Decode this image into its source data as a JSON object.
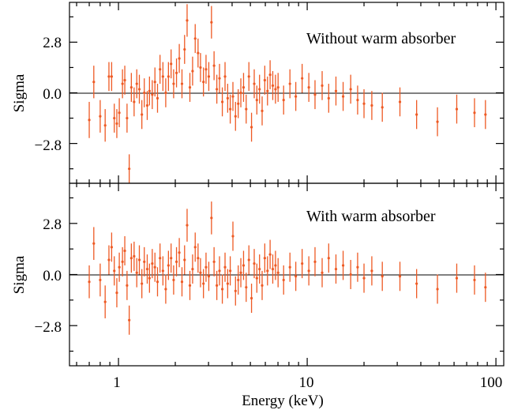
{
  "chart_data": {
    "type": "scatter",
    "x_scale": "log",
    "xlabel": "Energy (keV)",
    "xlim": [
      0.55,
      110
    ],
    "x_tick_labels": [
      "1",
      "10",
      "100"
    ],
    "colors": {
      "points": "#ee5a24",
      "zero_line": "#000000",
      "frame": "#000000"
    },
    "shared_x_axis": true,
    "panels": [
      {
        "annotation": "Without warm absorber",
        "ylabel": "Sigma",
        "ylim": [
          -5.0,
          5.0
        ],
        "y_tick_labels": [
          "2.8",
          "0.0",
          "−2.8"
        ],
        "reference_line_y": 0,
        "points": [
          {
            "x": 0.7,
            "y": -1.5,
            "err": 1.0
          },
          {
            "x": 0.74,
            "y": 0.6,
            "err": 0.9
          },
          {
            "x": 0.8,
            "y": -1.3,
            "err": 0.9
          },
          {
            "x": 0.85,
            "y": -1.8,
            "err": 0.9
          },
          {
            "x": 0.89,
            "y": 0.9,
            "err": 0.8
          },
          {
            "x": 0.92,
            "y": 0.9,
            "err": 0.8
          },
          {
            "x": 0.95,
            "y": -1.4,
            "err": 0.8
          },
          {
            "x": 0.98,
            "y": -1.7,
            "err": 0.8
          },
          {
            "x": 1.01,
            "y": -1.1,
            "err": 0.8
          },
          {
            "x": 1.05,
            "y": 0.5,
            "err": 0.8
          },
          {
            "x": 1.08,
            "y": 0.7,
            "err": 0.8
          },
          {
            "x": 1.11,
            "y": -1.4,
            "err": 0.8
          },
          {
            "x": 1.14,
            "y": -4.2,
            "err": 0.8
          },
          {
            "x": 1.17,
            "y": 0.3,
            "err": 0.8
          },
          {
            "x": 1.21,
            "y": -0.5,
            "err": 0.8
          },
          {
            "x": 1.25,
            "y": 0.5,
            "err": 0.8
          },
          {
            "x": 1.29,
            "y": 0.2,
            "err": 0.8
          },
          {
            "x": 1.33,
            "y": -1.2,
            "err": 0.8
          },
          {
            "x": 1.37,
            "y": 0.0,
            "err": 0.8
          },
          {
            "x": 1.42,
            "y": -0.7,
            "err": 0.8
          },
          {
            "x": 1.46,
            "y": 0.1,
            "err": 0.8
          },
          {
            "x": 1.51,
            "y": -0.1,
            "err": 0.8
          },
          {
            "x": 1.56,
            "y": 0.6,
            "err": 0.8
          },
          {
            "x": 1.61,
            "y": -0.3,
            "err": 0.8
          },
          {
            "x": 1.66,
            "y": 1.3,
            "err": 0.8
          },
          {
            "x": 1.72,
            "y": 0.9,
            "err": 0.8
          },
          {
            "x": 1.78,
            "y": 0.0,
            "err": 0.8
          },
          {
            "x": 1.84,
            "y": 0.9,
            "err": 0.8
          },
          {
            "x": 1.9,
            "y": 1.6,
            "err": 0.8
          },
          {
            "x": 1.96,
            "y": 0.5,
            "err": 0.8
          },
          {
            "x": 2.03,
            "y": 1.1,
            "err": 0.8
          },
          {
            "x": 2.1,
            "y": 1.9,
            "err": 0.8
          },
          {
            "x": 2.17,
            "y": 0.5,
            "err": 0.8
          },
          {
            "x": 2.24,
            "y": 2.4,
            "err": 0.8
          },
          {
            "x": 2.31,
            "y": 4.0,
            "err": 0.9
          },
          {
            "x": 2.39,
            "y": 0.3,
            "err": 0.8
          },
          {
            "x": 2.47,
            "y": 1.2,
            "err": 0.8
          },
          {
            "x": 2.55,
            "y": 3.0,
            "err": 0.8
          },
          {
            "x": 2.64,
            "y": 2.2,
            "err": 0.8
          },
          {
            "x": 2.72,
            "y": 1.4,
            "err": 0.8
          },
          {
            "x": 2.82,
            "y": 0.6,
            "err": 0.8
          },
          {
            "x": 2.91,
            "y": 1.3,
            "err": 0.8
          },
          {
            "x": 3.01,
            "y": 0.9,
            "err": 0.8
          },
          {
            "x": 3.11,
            "y": 3.9,
            "err": 0.9
          },
          {
            "x": 3.21,
            "y": 1.5,
            "err": 0.8
          },
          {
            "x": 3.32,
            "y": 0.2,
            "err": 0.8
          },
          {
            "x": 3.43,
            "y": 0.8,
            "err": 0.8
          },
          {
            "x": 3.55,
            "y": -0.5,
            "err": 0.8
          },
          {
            "x": 3.67,
            "y": 0.9,
            "err": 0.8
          },
          {
            "x": 3.79,
            "y": -0.3,
            "err": 0.8
          },
          {
            "x": 3.91,
            "y": -0.9,
            "err": 0.8
          },
          {
            "x": 4.04,
            "y": -0.2,
            "err": 0.8
          },
          {
            "x": 4.17,
            "y": -1.3,
            "err": 0.8
          },
          {
            "x": 4.31,
            "y": -0.6,
            "err": 0.8
          },
          {
            "x": 4.45,
            "y": 0.0,
            "err": 0.8
          },
          {
            "x": 4.6,
            "y": 0.3,
            "err": 0.8
          },
          {
            "x": 4.75,
            "y": -0.9,
            "err": 0.8
          },
          {
            "x": 4.91,
            "y": 0.9,
            "err": 0.8
          },
          {
            "x": 5.07,
            "y": -1.9,
            "err": 0.8
          },
          {
            "x": 5.24,
            "y": 0.5,
            "err": 0.8
          },
          {
            "x": 5.41,
            "y": -0.4,
            "err": 0.8
          },
          {
            "x": 5.59,
            "y": 0.2,
            "err": 0.8
          },
          {
            "x": 5.77,
            "y": -1.0,
            "err": 0.8
          },
          {
            "x": 5.96,
            "y": 0.7,
            "err": 0.8
          },
          {
            "x": 6.16,
            "y": 0.1,
            "err": 0.8
          },
          {
            "x": 6.36,
            "y": 1.0,
            "err": 0.8
          },
          {
            "x": 6.57,
            "y": 0.4,
            "err": 0.8
          },
          {
            "x": 6.79,
            "y": 0.2,
            "err": 0.8
          },
          {
            "x": 7.01,
            "y": 0.3,
            "err": 0.8
          },
          {
            "x": 7.5,
            "y": -0.4,
            "err": 0.8
          },
          {
            "x": 8.1,
            "y": 0.5,
            "err": 0.8
          },
          {
            "x": 8.7,
            "y": -0.2,
            "err": 0.8
          },
          {
            "x": 9.4,
            "y": 0.8,
            "err": 0.8
          },
          {
            "x": 10.2,
            "y": 0.3,
            "err": 0.8
          },
          {
            "x": 11.0,
            "y": -0.1,
            "err": 0.8
          },
          {
            "x": 12.0,
            "y": 0.4,
            "err": 0.8
          },
          {
            "x": 13.0,
            "y": -0.3,
            "err": 0.8
          },
          {
            "x": 14.2,
            "y": 0.1,
            "err": 0.8
          },
          {
            "x": 15.5,
            "y": -0.2,
            "err": 0.8
          },
          {
            "x": 17.0,
            "y": 0.2,
            "err": 0.8
          },
          {
            "x": 18.5,
            "y": -0.4,
            "err": 0.8
          },
          {
            "x": 20.0,
            "y": -0.6,
            "err": 0.8
          },
          {
            "x": 22.0,
            "y": -0.7,
            "err": 0.8
          },
          {
            "x": 25.0,
            "y": -0.8,
            "err": 0.8
          },
          {
            "x": 31.0,
            "y": -0.5,
            "err": 0.8
          },
          {
            "x": 38.0,
            "y": -1.2,
            "err": 0.8
          },
          {
            "x": 49.0,
            "y": -1.6,
            "err": 0.8
          },
          {
            "x": 62.0,
            "y": -0.9,
            "err": 0.8
          },
          {
            "x": 77.0,
            "y": -1.1,
            "err": 0.8
          },
          {
            "x": 88.0,
            "y": -1.2,
            "err": 0.8
          }
        ]
      },
      {
        "annotation": "With warm absorber",
        "ylabel": "Sigma",
        "ylim": [
          -5.0,
          5.0
        ],
        "y_tick_labels": [
          "2.8",
          "0.0",
          "−2.8"
        ],
        "reference_line_y": 0,
        "points": [
          {
            "x": 0.7,
            "y": -0.4,
            "err": 0.9
          },
          {
            "x": 0.74,
            "y": 1.7,
            "err": 0.9
          },
          {
            "x": 0.8,
            "y": -0.3,
            "err": 0.9
          },
          {
            "x": 0.85,
            "y": -1.5,
            "err": 0.9
          },
          {
            "x": 0.89,
            "y": 0.8,
            "err": 0.8
          },
          {
            "x": 0.92,
            "y": 1.5,
            "err": 0.8
          },
          {
            "x": 0.95,
            "y": 0.2,
            "err": 0.8
          },
          {
            "x": 0.98,
            "y": -1.0,
            "err": 0.8
          },
          {
            "x": 1.01,
            "y": 0.4,
            "err": 0.8
          },
          {
            "x": 1.05,
            "y": 0.7,
            "err": 0.8
          },
          {
            "x": 1.08,
            "y": 1.3,
            "err": 0.8
          },
          {
            "x": 1.11,
            "y": -0.6,
            "err": 0.8
          },
          {
            "x": 1.14,
            "y": -2.5,
            "err": 0.8
          },
          {
            "x": 1.17,
            "y": 0.9,
            "err": 0.8
          },
          {
            "x": 1.21,
            "y": 1.0,
            "err": 0.8
          },
          {
            "x": 1.25,
            "y": 0.1,
            "err": 0.8
          },
          {
            "x": 1.29,
            "y": 0.8,
            "err": 0.8
          },
          {
            "x": 1.33,
            "y": -0.5,
            "err": 0.8
          },
          {
            "x": 1.37,
            "y": 0.7,
            "err": 0.8
          },
          {
            "x": 1.42,
            "y": 0.3,
            "err": 0.8
          },
          {
            "x": 1.46,
            "y": -0.2,
            "err": 0.8
          },
          {
            "x": 1.51,
            "y": 0.6,
            "err": 0.8
          },
          {
            "x": 1.56,
            "y": 0.4,
            "err": 0.8
          },
          {
            "x": 1.61,
            "y": -0.4,
            "err": 0.8
          },
          {
            "x": 1.66,
            "y": 0.9,
            "err": 0.8
          },
          {
            "x": 1.72,
            "y": 0.2,
            "err": 0.8
          },
          {
            "x": 1.78,
            "y": -0.8,
            "err": 0.8
          },
          {
            "x": 1.84,
            "y": 0.5,
            "err": 0.8
          },
          {
            "x": 1.9,
            "y": 0.9,
            "err": 0.8
          },
          {
            "x": 1.96,
            "y": -0.3,
            "err": 0.8
          },
          {
            "x": 2.03,
            "y": 0.7,
            "err": 0.8
          },
          {
            "x": 2.1,
            "y": 1.2,
            "err": 0.8
          },
          {
            "x": 2.17,
            "y": -0.4,
            "err": 0.8
          },
          {
            "x": 2.24,
            "y": 0.8,
            "err": 0.8
          },
          {
            "x": 2.31,
            "y": 2.7,
            "err": 0.9
          },
          {
            "x": 2.39,
            "y": -0.6,
            "err": 0.8
          },
          {
            "x": 2.47,
            "y": 0.3,
            "err": 0.8
          },
          {
            "x": 2.55,
            "y": 1.5,
            "err": 0.8
          },
          {
            "x": 2.64,
            "y": 0.9,
            "err": 0.8
          },
          {
            "x": 2.72,
            "y": 0.1,
            "err": 0.8
          },
          {
            "x": 2.82,
            "y": -0.5,
            "err": 0.8
          },
          {
            "x": 2.91,
            "y": 0.4,
            "err": 0.8
          },
          {
            "x": 3.01,
            "y": -0.1,
            "err": 0.8
          },
          {
            "x": 3.11,
            "y": 3.1,
            "err": 0.9
          },
          {
            "x": 3.21,
            "y": 0.7,
            "err": 0.8
          },
          {
            "x": 3.32,
            "y": -0.6,
            "err": 0.8
          },
          {
            "x": 3.43,
            "y": 0.2,
            "err": 0.8
          },
          {
            "x": 3.55,
            "y": -0.8,
            "err": 0.8
          },
          {
            "x": 3.67,
            "y": 0.4,
            "err": 0.8
          },
          {
            "x": 3.79,
            "y": -0.5,
            "err": 0.8
          },
          {
            "x": 3.91,
            "y": 0.2,
            "err": 0.8
          },
          {
            "x": 4.04,
            "y": 2.1,
            "err": 0.8
          },
          {
            "x": 4.17,
            "y": -0.9,
            "err": 0.8
          },
          {
            "x": 4.31,
            "y": -0.3,
            "err": 0.8
          },
          {
            "x": 4.45,
            "y": 0.1,
            "err": 0.8
          },
          {
            "x": 4.6,
            "y": 0.5,
            "err": 0.8
          },
          {
            "x": 4.75,
            "y": -0.7,
            "err": 0.8
          },
          {
            "x": 4.91,
            "y": 0.8,
            "err": 0.8
          },
          {
            "x": 5.07,
            "y": -1.3,
            "err": 0.8
          },
          {
            "x": 5.24,
            "y": 0.6,
            "err": 0.8
          },
          {
            "x": 5.41,
            "y": -0.2,
            "err": 0.8
          },
          {
            "x": 5.59,
            "y": 0.3,
            "err": 0.8
          },
          {
            "x": 5.77,
            "y": -0.6,
            "err": 0.8
          },
          {
            "x": 5.96,
            "y": 0.9,
            "err": 0.8
          },
          {
            "x": 6.16,
            "y": 0.2,
            "err": 0.8
          },
          {
            "x": 6.36,
            "y": 1.1,
            "err": 0.8
          },
          {
            "x": 6.57,
            "y": 0.3,
            "err": 0.8
          },
          {
            "x": 6.79,
            "y": 0.5,
            "err": 0.8
          },
          {
            "x": 7.01,
            "y": 0.1,
            "err": 0.8
          },
          {
            "x": 7.5,
            "y": -0.3,
            "err": 0.8
          },
          {
            "x": 8.1,
            "y": 0.4,
            "err": 0.8
          },
          {
            "x": 8.7,
            "y": -0.1,
            "err": 0.8
          },
          {
            "x": 9.4,
            "y": 0.6,
            "err": 0.8
          },
          {
            "x": 10.2,
            "y": 0.2,
            "err": 0.8
          },
          {
            "x": 11.0,
            "y": 0.7,
            "err": 0.8
          },
          {
            "x": 12.0,
            "y": 0.1,
            "err": 0.8
          },
          {
            "x": 13.0,
            "y": 0.9,
            "err": 0.8
          },
          {
            "x": 14.2,
            "y": 0.3,
            "err": 0.8
          },
          {
            "x": 15.5,
            "y": 0.5,
            "err": 0.8
          },
          {
            "x": 17.0,
            "y": 0.0,
            "err": 0.8
          },
          {
            "x": 18.5,
            "y": 0.4,
            "err": 0.8
          },
          {
            "x": 20.0,
            "y": -0.2,
            "err": 0.8
          },
          {
            "x": 22.0,
            "y": 0.2,
            "err": 0.8
          },
          {
            "x": 25.0,
            "y": -0.1,
            "err": 0.8
          },
          {
            "x": 31.0,
            "y": -0.1,
            "err": 0.8
          },
          {
            "x": 38.0,
            "y": -0.5,
            "err": 0.8
          },
          {
            "x": 49.0,
            "y": -0.8,
            "err": 0.8
          },
          {
            "x": 62.0,
            "y": -0.2,
            "err": 0.8
          },
          {
            "x": 77.0,
            "y": -0.3,
            "err": 0.8
          },
          {
            "x": 88.0,
            "y": -0.7,
            "err": 0.8
          }
        ]
      }
    ]
  }
}
